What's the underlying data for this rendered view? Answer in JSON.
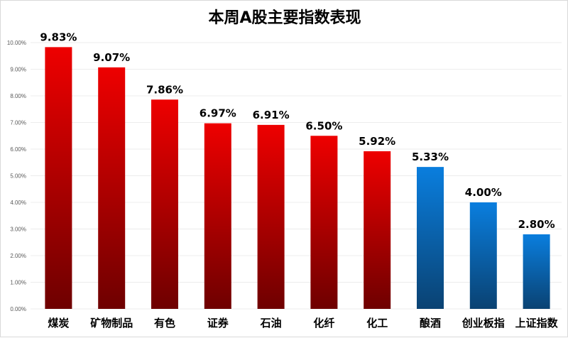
{
  "chart_data": {
    "type": "bar",
    "title": "本周A股主要指数表现",
    "categories": [
      "煤炭",
      "矿物制品",
      "有色",
      "证券",
      "石油",
      "化纤",
      "化工",
      "酿酒",
      "创业板指",
      "上证指数"
    ],
    "values": [
      9.83,
      9.07,
      7.86,
      6.97,
      6.91,
      6.5,
      5.92,
      5.33,
      4.0,
      2.8
    ],
    "data_labels": [
      "9.83%",
      "9.07%",
      "7.86%",
      "6.97%",
      "6.91%",
      "6.50%",
      "5.92%",
      "5.33%",
      "4.00%",
      "2.80%"
    ],
    "ylim": [
      0,
      10
    ],
    "yticks": [
      0,
      1,
      2,
      3,
      4,
      5,
      6,
      7,
      8,
      9,
      10
    ],
    "ytick_labels": [
      "0.00%",
      "1.00%",
      "2.00%",
      "3.00%",
      "4.00%",
      "5.00%",
      "6.00%",
      "7.00%",
      "8.00%",
      "9.00%",
      "10.00%"
    ],
    "grid": true,
    "bar_colors": [
      "red",
      "red",
      "red",
      "red",
      "red",
      "red",
      "red",
      "blue",
      "blue",
      "blue"
    ],
    "colors": {
      "red_top": "#ee0000",
      "red_bottom": "#6e0000",
      "blue_top": "#0a7ede",
      "blue_bottom": "#0a4272",
      "grid": "#ececec"
    }
  }
}
